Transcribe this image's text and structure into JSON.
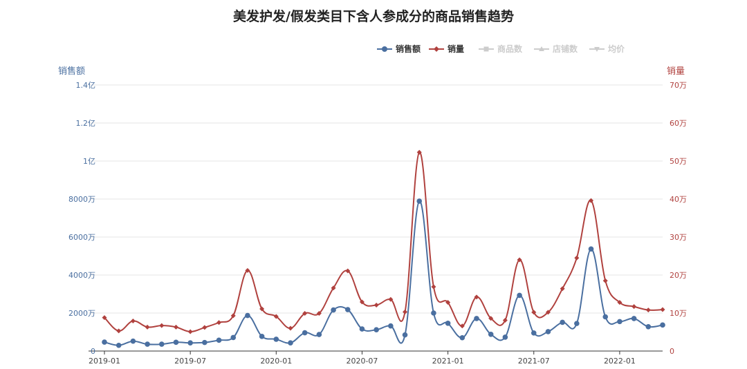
{
  "chart_data": {
    "type": "line",
    "title": "美发护发/假发类目下含人参成分的商品销售趋势",
    "legend": {
      "placement": "top-right",
      "items": [
        {
          "name": "销售额",
          "color": "#4a6fa0",
          "marker": "circle",
          "active": true
        },
        {
          "name": "销量",
          "color": "#b0413e",
          "marker": "diamond",
          "active": true
        },
        {
          "name": "商品数",
          "color": "#cccccc",
          "marker": "square",
          "active": false
        },
        {
          "name": "店铺数",
          "color": "#cccccc",
          "marker": "triangle",
          "active": false
        },
        {
          "name": "均价",
          "color": "#cccccc",
          "marker": "triangle-down",
          "active": false
        }
      ]
    },
    "y_left": {
      "label": "销售额",
      "color": "#4a6fa0",
      "min": 0,
      "max": 140000000,
      "ticks": [
        {
          "value": 0,
          "label": "0"
        },
        {
          "value": 20000000,
          "label": "2000万"
        },
        {
          "value": 40000000,
          "label": "4000万"
        },
        {
          "value": 60000000,
          "label": "6000万"
        },
        {
          "value": 80000000,
          "label": "8000万"
        },
        {
          "value": 100000000,
          "label": "1亿"
        },
        {
          "value": 120000000,
          "label": "1.2亿"
        },
        {
          "value": 140000000,
          "label": "1.4亿"
        }
      ]
    },
    "y_right": {
      "label": "销量",
      "color": "#b0413e",
      "min": 0,
      "max": 700000,
      "ticks": [
        {
          "value": 0,
          "label": "0"
        },
        {
          "value": 100000,
          "label": "10万"
        },
        {
          "value": 200000,
          "label": "20万"
        },
        {
          "value": 300000,
          "label": "30万"
        },
        {
          "value": 400000,
          "label": "40万"
        },
        {
          "value": 500000,
          "label": "50万"
        },
        {
          "value": 600000,
          "label": "60万"
        },
        {
          "value": 700000,
          "label": "70万"
        }
      ]
    },
    "grid": true,
    "x": [
      "2019-01",
      "2019-02",
      "2019-03",
      "2019-04",
      "2019-05",
      "2019-06",
      "2019-07",
      "2019-08",
      "2019-09",
      "2019-10",
      "2019-11",
      "2019-12",
      "2020-01",
      "2020-02",
      "2020-03",
      "2020-04",
      "2020-05",
      "2020-06",
      "2020-07",
      "2020-08",
      "2020-09",
      "2020-10",
      "2020-11",
      "2020-12",
      "2021-01",
      "2021-02",
      "2021-03",
      "2021-04",
      "2021-05",
      "2021-06",
      "2021-07",
      "2021-08",
      "2021-09",
      "2021-10",
      "2021-11",
      "2021-12",
      "2022-01",
      "2022-02",
      "2022-03",
      "2022-04"
    ],
    "x_tick_labels": [
      "2019-01",
      "2019-07",
      "2020-01",
      "2020-07",
      "2021-01",
      "2021-07",
      "2022-01"
    ],
    "series": [
      {
        "name": "销售额",
        "axis": "left",
        "values": [
          4700000,
          3000000,
          5200000,
          3600000,
          3600000,
          4600000,
          4300000,
          4500000,
          5700000,
          7100000,
          18700000,
          7700000,
          6200000,
          4300000,
          9600000,
          8700000,
          21600000,
          21800000,
          11600000,
          11200000,
          13200000,
          8500000,
          78900000,
          20000000,
          14600000,
          7000000,
          17100000,
          8800000,
          7300000,
          29300000,
          9500000,
          10200000,
          15100000,
          14500000,
          53700000,
          18000000,
          15500000,
          17100000,
          12800000,
          13700000
        ]
      },
      {
        "name": "销量",
        "axis": "right",
        "values": [
          88000,
          53000,
          79000,
          63000,
          67000,
          63000,
          51000,
          62000,
          75000,
          93000,
          212000,
          111000,
          91000,
          60000,
          99000,
          99000,
          166000,
          211000,
          129000,
          121000,
          136000,
          103000,
          523000,
          169000,
          128000,
          66000,
          142000,
          86000,
          81000,
          240000,
          102000,
          102000,
          164000,
          245000,
          396000,
          185000,
          128000,
          117000,
          108000,
          109000
        ]
      }
    ]
  }
}
